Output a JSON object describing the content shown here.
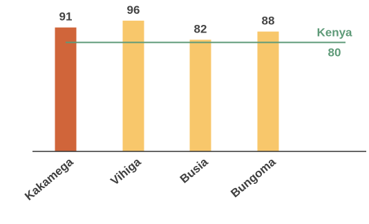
{
  "chart_data": {
    "type": "bar",
    "categories": [
      "Kakamega",
      "Vihiga",
      "Busia",
      "Bungoma"
    ],
    "values": [
      91,
      96,
      82,
      88
    ],
    "bar_colors": [
      "#D0653A",
      "#F8C76B",
      "#F8C76B",
      "#F8C76B"
    ],
    "ylim": [
      0,
      100
    ],
    "grid": false,
    "reference_line": {
      "label": "Kenya",
      "value": 80,
      "color": "#5E9A78"
    },
    "axis_color": "#333333"
  }
}
